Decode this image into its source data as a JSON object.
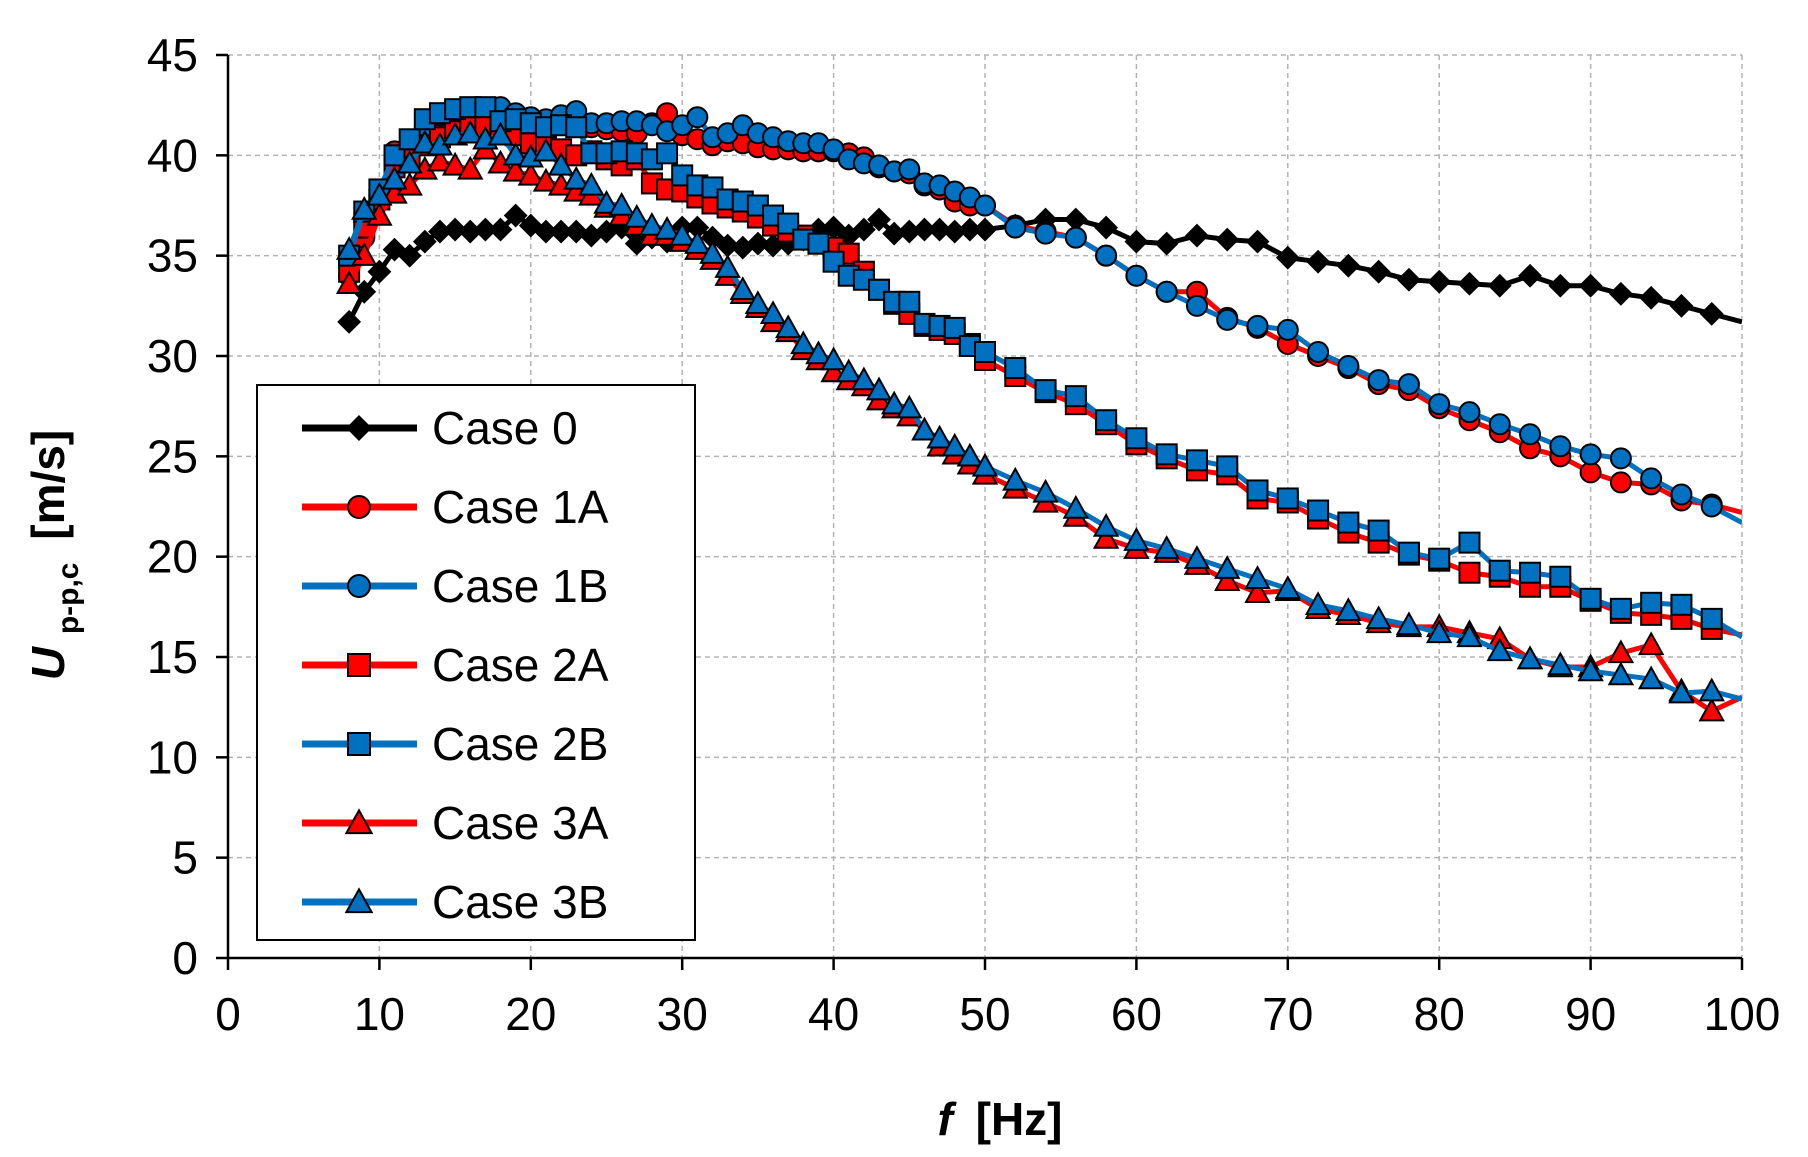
{
  "chart_data": {
    "type": "line",
    "title": "",
    "xlabel": "[Hz]",
    "xlabel_symbol": "f",
    "ylabel": "[m/s]",
    "ylabel_symbol": "U",
    "ylabel_subscript": "p-p,c",
    "xlim": [
      0,
      100
    ],
    "ylim": [
      0,
      45
    ],
    "xticks": [
      "0",
      "10",
      "20",
      "30",
      "40",
      "50",
      "60",
      "70",
      "80",
      "90",
      "100"
    ],
    "yticks": [
      "0",
      "5",
      "10",
      "15",
      "20",
      "25",
      "30",
      "35",
      "40",
      "45"
    ],
    "grid": true,
    "legend_position": "left",
    "colors": {
      "black": "#000000",
      "red": "#ff0000",
      "blue": "#0070c0"
    },
    "series": [
      {
        "name": "Case 0",
        "color": "#000000",
        "marker": "diamond",
        "x": [
          8,
          9,
          10,
          11,
          12,
          13,
          14,
          15,
          16,
          17,
          18,
          19,
          20,
          21,
          22,
          23,
          24,
          25,
          26,
          27,
          28,
          29,
          30,
          31,
          32,
          33,
          34,
          35,
          36,
          37,
          38,
          39,
          40,
          41,
          42,
          43,
          44,
          45,
          46,
          47,
          48,
          49,
          50,
          52,
          54,
          56,
          58,
          60,
          62,
          64,
          66,
          68,
          70,
          72,
          74,
          76,
          78,
          80,
          82,
          84,
          86,
          88,
          90,
          92,
          94,
          96,
          98,
          100
        ],
        "y": [
          31.7,
          33.2,
          34.2,
          35.3,
          35.0,
          35.7,
          36.2,
          36.3,
          36.2,
          36.3,
          36.3,
          37.0,
          36.5,
          36.2,
          36.2,
          36.2,
          36.0,
          36.2,
          36.4,
          35.6,
          35.9,
          35.7,
          36.4,
          36.4,
          35.9,
          35.5,
          35.4,
          35.6,
          35.5,
          35.6,
          35.8,
          36.3,
          36.4,
          36.0,
          36.3,
          36.8,
          36.1,
          36.2,
          36.3,
          36.3,
          36.2,
          36.3,
          36.3,
          36.5,
          36.8,
          36.8,
          36.4,
          35.7,
          35.6,
          36.0,
          35.8,
          35.7,
          34.9,
          34.7,
          34.5,
          34.2,
          33.8,
          33.7,
          33.6,
          33.5,
          34.0,
          33.5,
          33.5,
          33.1,
          32.9,
          32.5,
          32.1,
          31.7
        ]
      },
      {
        "name": "Case 1A",
        "color": "#ff0000",
        "marker": "circle",
        "x": [
          8,
          9,
          10,
          11,
          12,
          13,
          14,
          15,
          16,
          17,
          18,
          19,
          20,
          21,
          22,
          23,
          24,
          25,
          26,
          27,
          28,
          29,
          30,
          31,
          32,
          33,
          34,
          35,
          36,
          37,
          38,
          39,
          40,
          41,
          42,
          43,
          44,
          45,
          46,
          47,
          48,
          49,
          50,
          52,
          54,
          56,
          58,
          60,
          62,
          64,
          66,
          68,
          70,
          72,
          74,
          76,
          78,
          80,
          82,
          84,
          86,
          88,
          90,
          92,
          94,
          96,
          98,
          100
        ],
        "y": [
          34.0,
          35.9,
          37.8,
          40.2,
          40.3,
          41.0,
          41.3,
          41.8,
          42.0,
          42.0,
          42.0,
          41.9,
          41.7,
          41.6,
          41.6,
          41.5,
          41.4,
          41.3,
          41.2,
          41.1,
          41.6,
          42.1,
          41.0,
          40.8,
          40.5,
          40.7,
          40.6,
          40.4,
          40.3,
          40.3,
          40.2,
          40.2,
          40.2,
          40.1,
          39.9,
          39.4,
          39.2,
          39.1,
          38.5,
          38.3,
          37.7,
          37.5,
          37.5,
          36.5,
          36.2,
          35.9,
          35.0,
          34.0,
          33.2,
          33.2,
          31.9,
          31.4,
          30.6,
          30.0,
          29.4,
          28.6,
          28.3,
          27.4,
          26.8,
          26.2,
          25.4,
          25.0,
          24.2,
          23.7,
          23.6,
          22.8,
          22.6,
          22.2
        ]
      },
      {
        "name": "Case 1B",
        "color": "#0070c0",
        "marker": "circle",
        "x": [
          8,
          9,
          10,
          11,
          12,
          13,
          14,
          15,
          16,
          17,
          18,
          19,
          20,
          21,
          22,
          23,
          24,
          25,
          26,
          27,
          28,
          29,
          30,
          31,
          32,
          33,
          34,
          35,
          36,
          37,
          38,
          39,
          40,
          41,
          42,
          43,
          44,
          45,
          46,
          47,
          48,
          49,
          50,
          52,
          54,
          56,
          58,
          60,
          62,
          64,
          66,
          68,
          70,
          72,
          74,
          76,
          78,
          80,
          82,
          84,
          86,
          88,
          90,
          92,
          94,
          96,
          98,
          100
        ],
        "y": [
          34.8,
          36.7,
          38.0,
          39.9,
          40.4,
          41.4,
          42.0,
          42.2,
          42.2,
          42.3,
          42.4,
          42.1,
          41.9,
          41.8,
          42.0,
          42.2,
          41.6,
          41.6,
          41.7,
          41.7,
          41.5,
          41.2,
          41.5,
          41.9,
          40.9,
          41.1,
          41.5,
          41.1,
          40.9,
          40.7,
          40.6,
          40.6,
          40.3,
          39.8,
          39.6,
          39.5,
          39.2,
          39.3,
          38.6,
          38.5,
          38.2,
          37.9,
          37.5,
          36.4,
          36.1,
          35.9,
          35.0,
          34.0,
          33.2,
          32.5,
          31.8,
          31.5,
          31.3,
          30.2,
          29.5,
          28.8,
          28.6,
          27.6,
          27.2,
          26.6,
          26.1,
          25.5,
          25.1,
          24.9,
          23.9,
          23.1,
          22.5,
          21.7
        ]
      },
      {
        "name": "Case 2A",
        "color": "#ff0000",
        "marker": "square",
        "x": [
          8,
          9,
          10,
          11,
          12,
          13,
          14,
          15,
          16,
          17,
          18,
          19,
          20,
          21,
          22,
          23,
          24,
          25,
          26,
          27,
          28,
          29,
          30,
          31,
          32,
          33,
          34,
          35,
          36,
          37,
          38,
          39,
          40,
          41,
          42,
          43,
          44,
          45,
          46,
          47,
          48,
          49,
          50,
          52,
          54,
          56,
          58,
          60,
          62,
          64,
          66,
          68,
          70,
          72,
          74,
          76,
          78,
          80,
          82,
          84,
          86,
          88,
          90,
          92,
          94,
          96,
          98,
          100
        ],
        "y": [
          34.2,
          36.4,
          37.8,
          39.4,
          39.8,
          40.5,
          40.9,
          41.2,
          41.4,
          41.5,
          41.2,
          41.0,
          40.6,
          40.5,
          40.3,
          40.0,
          40.2,
          39.8,
          39.5,
          39.8,
          38.6,
          38.3,
          38.2,
          37.9,
          37.6,
          37.4,
          37.2,
          36.9,
          36.5,
          36.2,
          36.0,
          35.6,
          35.4,
          35.1,
          34.2,
          33.3,
          32.6,
          32.1,
          31.5,
          31.3,
          31.1,
          30.6,
          29.8,
          29.0,
          28.2,
          27.6,
          26.6,
          25.6,
          24.9,
          24.3,
          24.1,
          22.9,
          22.7,
          21.9,
          21.2,
          20.7,
          20.1,
          19.8,
          19.2,
          19.0,
          18.5,
          18.5,
          17.8,
          17.2,
          17.1,
          16.9,
          16.4,
          16.1
        ]
      },
      {
        "name": "Case 2B",
        "color": "#0070c0",
        "marker": "square",
        "x": [
          8,
          9,
          10,
          11,
          12,
          13,
          14,
          15,
          16,
          17,
          18,
          19,
          20,
          21,
          22,
          23,
          24,
          25,
          26,
          27,
          28,
          29,
          30,
          31,
          32,
          33,
          34,
          35,
          36,
          37,
          38,
          39,
          40,
          41,
          42,
          43,
          44,
          45,
          46,
          47,
          48,
          49,
          50,
          52,
          54,
          56,
          58,
          60,
          62,
          64,
          66,
          68,
          70,
          72,
          74,
          76,
          78,
          80,
          82,
          84,
          86,
          88,
          90,
          92,
          94,
          96,
          98,
          100
        ],
        "y": [
          35.0,
          37.2,
          38.3,
          40.0,
          40.8,
          41.8,
          42.1,
          42.3,
          42.4,
          42.4,
          41.7,
          41.8,
          41.6,
          41.4,
          41.5,
          41.4,
          40.1,
          40.1,
          40.2,
          40.1,
          39.8,
          40.1,
          39.0,
          38.5,
          38.4,
          37.8,
          37.7,
          37.5,
          37.0,
          36.6,
          35.8,
          35.6,
          34.7,
          34.0,
          33.8,
          33.3,
          32.7,
          32.7,
          31.6,
          31.5,
          31.4,
          30.5,
          30.2,
          29.4,
          28.3,
          28.0,
          26.8,
          25.9,
          25.1,
          24.8,
          24.5,
          23.3,
          22.9,
          22.3,
          21.7,
          21.3,
          20.2,
          19.9,
          20.7,
          19.3,
          19.2,
          19.0,
          17.9,
          17.4,
          17.7,
          17.6,
          16.9,
          16.0
        ]
      },
      {
        "name": "Case 3A",
        "color": "#ff0000",
        "marker": "triangle",
        "x": [
          8,
          9,
          10,
          11,
          12,
          13,
          14,
          15,
          16,
          17,
          18,
          19,
          20,
          21,
          22,
          23,
          24,
          25,
          26,
          27,
          28,
          29,
          30,
          31,
          32,
          33,
          34,
          35,
          36,
          37,
          38,
          39,
          40,
          41,
          42,
          43,
          44,
          45,
          46,
          47,
          48,
          49,
          50,
          52,
          54,
          56,
          58,
          60,
          62,
          64,
          66,
          68,
          70,
          72,
          74,
          76,
          78,
          80,
          82,
          84,
          86,
          88,
          90,
          92,
          94,
          96,
          98,
          100
        ],
        "y": [
          33.6,
          35.0,
          37.0,
          38.1,
          38.5,
          39.3,
          39.7,
          39.5,
          39.3,
          40.3,
          39.6,
          39.2,
          39.0,
          38.7,
          38.5,
          38.2,
          38.0,
          37.4,
          37.0,
          36.5,
          36.0,
          36.0,
          35.7,
          35.3,
          34.8,
          34.0,
          33.1,
          32.4,
          31.7,
          31.2,
          30.3,
          29.8,
          29.2,
          28.8,
          28.5,
          27.8,
          27.4,
          27.0,
          26.3,
          25.5,
          25.1,
          24.6,
          24.1,
          23.4,
          22.7,
          22.0,
          20.9,
          20.4,
          20.2,
          19.6,
          18.8,
          18.2,
          18.3,
          17.4,
          17.1,
          16.7,
          16.5,
          16.5,
          16.2,
          15.9,
          14.9,
          14.5,
          14.5,
          15.2,
          15.6,
          13.3,
          12.3,
          13.0
        ]
      },
      {
        "name": "Case 3B",
        "color": "#0070c0",
        "marker": "triangle",
        "x": [
          8,
          9,
          10,
          11,
          12,
          13,
          14,
          15,
          16,
          17,
          18,
          19,
          20,
          21,
          22,
          23,
          24,
          25,
          26,
          27,
          28,
          29,
          30,
          31,
          32,
          33,
          34,
          35,
          36,
          37,
          38,
          39,
          40,
          41,
          42,
          43,
          44,
          45,
          46,
          47,
          48,
          49,
          50,
          52,
          54,
          56,
          58,
          60,
          62,
          64,
          66,
          68,
          70,
          72,
          74,
          76,
          78,
          80,
          82,
          84,
          86,
          88,
          90,
          92,
          94,
          96,
          98,
          100
        ],
        "y": [
          35.3,
          37.3,
          38.0,
          38.8,
          39.6,
          40.6,
          40.5,
          41.0,
          41.1,
          40.8,
          41.0,
          40.0,
          39.9,
          40.2,
          39.5,
          38.8,
          38.5,
          37.6,
          37.5,
          36.9,
          36.5,
          36.3,
          36.0,
          35.6,
          35.1,
          34.4,
          33.3,
          32.6,
          32.1,
          31.4,
          30.6,
          30.1,
          29.8,
          29.2,
          28.8,
          28.3,
          27.6,
          27.4,
          26.3,
          25.9,
          25.5,
          25.0,
          24.5,
          23.8,
          23.2,
          22.4,
          21.5,
          20.8,
          20.4,
          19.9,
          19.4,
          18.9,
          18.4,
          17.6,
          17.3,
          16.9,
          16.6,
          16.2,
          16.0,
          15.3,
          14.9,
          14.6,
          14.3,
          14.1,
          13.9,
          13.2,
          13.3,
          12.9
        ]
      }
    ]
  }
}
